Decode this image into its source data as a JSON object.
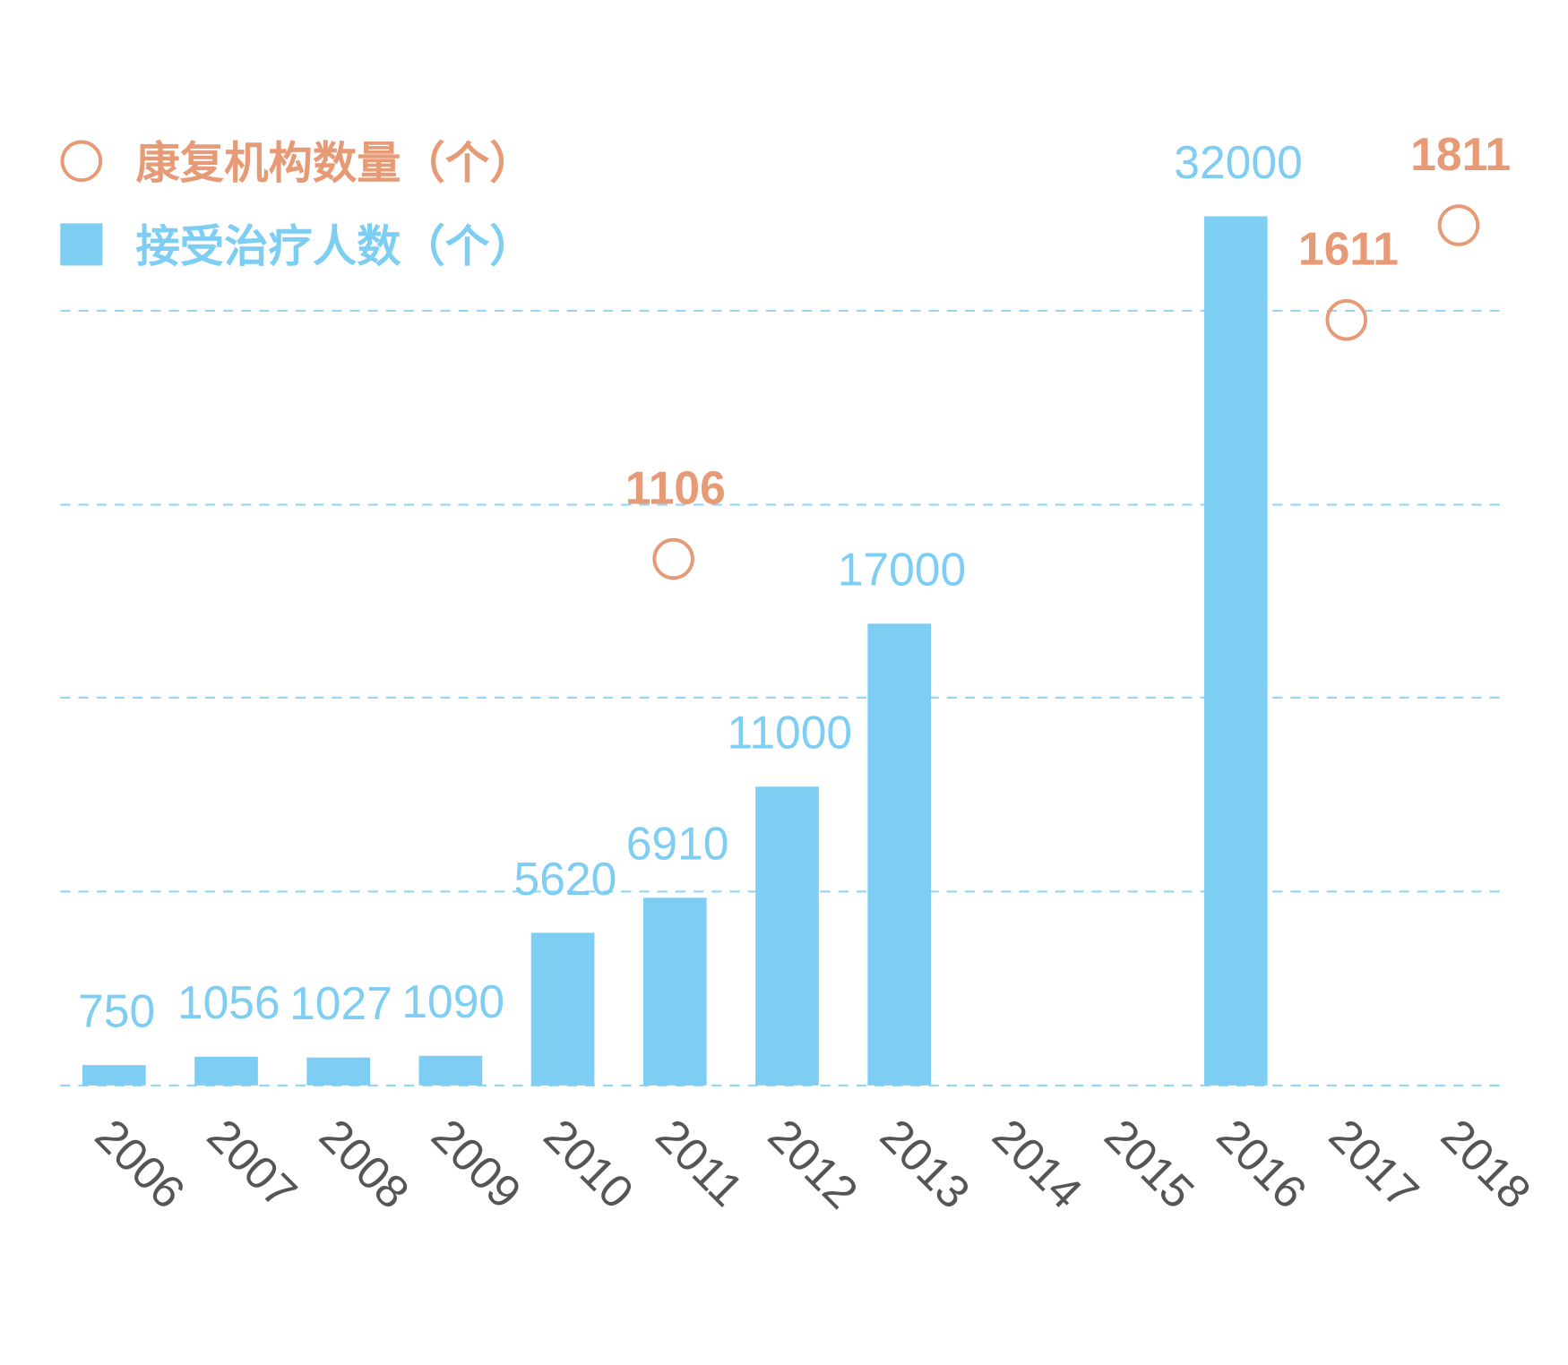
{
  "chart_data": {
    "type": "bar",
    "categories": [
      "2006",
      "2007",
      "2008",
      "2009",
      "2010",
      "2011",
      "2012",
      "2013",
      "2014",
      "2015",
      "2016",
      "2017",
      "2018"
    ],
    "series": [
      {
        "name": "接受治疗人数（个）",
        "kind": "bar",
        "color": "#7ecdf3",
        "values": [
          750,
          1056,
          1027,
          1090,
          5620,
          6910,
          11000,
          17000,
          null,
          null,
          32000,
          null,
          null
        ]
      },
      {
        "name": "康复机构数量（个）",
        "kind": "scatter",
        "marker": "open-circle",
        "color": "#e69a76",
        "values": [
          null,
          null,
          null,
          null,
          null,
          1106,
          null,
          null,
          null,
          null,
          null,
          1611,
          1811
        ]
      }
    ],
    "legend": "top-left",
    "grid": "horizontal dashed",
    "ylim": [
      0,
      36000
    ]
  }
}
